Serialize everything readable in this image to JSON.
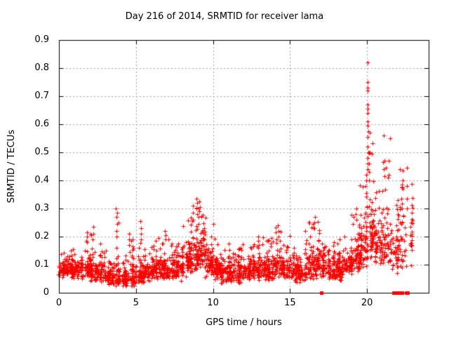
{
  "page": {
    "background": "#ffffff",
    "text_color": "#000000"
  },
  "chart_data": {
    "type": "scatter",
    "title": "Day 216 of 2014, SRMTID for receiver lama",
    "xlabel": "GPS time / hours",
    "ylabel": "SRMTID / TECUs",
    "xlim": [
      0,
      24
    ],
    "ylim": [
      0,
      0.9
    ],
    "xtick_values": [
      0,
      5,
      10,
      15,
      20
    ],
    "xtick_labels": [
      "0",
      "5",
      "10",
      "15",
      "20"
    ],
    "ytick_values": [
      0,
      0.1,
      0.2,
      0.3,
      0.4,
      0.5,
      0.6,
      0.7,
      0.8,
      0.9
    ],
    "ytick_labels": [
      "0",
      "0.1",
      "0.2",
      "0.3",
      "0.4",
      "0.5",
      "0.6",
      "0.7",
      "0.8",
      "0.9"
    ],
    "grid": {
      "style": "dashed",
      "color": "#a0a0a0"
    },
    "axis_color": "#000000",
    "marker_color": "#ff0000",
    "legend": "none",
    "seed": 216,
    "series": [
      {
        "name": "srmtid",
        "marker": "plus",
        "color": "#ff0000",
        "bands_format": [
          "t_start_h",
          "t_end_h",
          "n_points",
          "band_center_TECU",
          "spread_TECU",
          "max_TECU"
        ],
        "bands": [
          [
            0,
            0.5,
            60,
            0.1,
            0.022,
            0.16
          ],
          [
            0.5,
            1,
            60,
            0.095,
            0.022,
            0.17
          ],
          [
            1,
            1.5,
            55,
            0.1,
            0.026,
            0.19
          ],
          [
            1.5,
            2,
            55,
            0.1,
            0.028,
            0.21
          ],
          [
            2,
            2.5,
            55,
            0.09,
            0.028,
            0.24
          ],
          [
            2.5,
            3,
            50,
            0.08,
            0.024,
            0.18
          ],
          [
            3,
            3.5,
            50,
            0.065,
            0.02,
            0.14
          ],
          [
            3.5,
            4,
            52,
            0.07,
            0.024,
            0.26
          ],
          [
            4,
            4.5,
            50,
            0.06,
            0.02,
            0.16
          ],
          [
            4.5,
            5,
            50,
            0.07,
            0.024,
            0.22
          ],
          [
            5,
            5.5,
            55,
            0.08,
            0.028,
            0.24
          ],
          [
            5.5,
            6,
            55,
            0.09,
            0.025,
            0.18
          ],
          [
            6,
            6.5,
            55,
            0.1,
            0.025,
            0.19
          ],
          [
            6.5,
            7,
            55,
            0.1,
            0.028,
            0.22
          ],
          [
            7,
            7.5,
            55,
            0.09,
            0.025,
            0.19
          ],
          [
            7.5,
            8,
            55,
            0.1,
            0.03,
            0.23
          ],
          [
            8,
            8.5,
            60,
            0.13,
            0.04,
            0.28
          ],
          [
            8.5,
            9,
            60,
            0.16,
            0.05,
            0.33
          ],
          [
            9,
            9.5,
            60,
            0.17,
            0.05,
            0.32
          ],
          [
            9.5,
            10,
            55,
            0.13,
            0.04,
            0.27
          ],
          [
            10,
            10.5,
            55,
            0.1,
            0.03,
            0.2
          ],
          [
            10.5,
            11,
            55,
            0.085,
            0.024,
            0.16
          ],
          [
            11,
            11.5,
            55,
            0.08,
            0.024,
            0.18
          ],
          [
            11.5,
            12,
            55,
            0.09,
            0.028,
            0.2
          ],
          [
            12,
            12.5,
            55,
            0.09,
            0.025,
            0.17
          ],
          [
            12.5,
            13,
            55,
            0.1,
            0.028,
            0.2
          ],
          [
            13,
            13.5,
            55,
            0.1,
            0.028,
            0.21
          ],
          [
            13.5,
            14,
            55,
            0.1,
            0.032,
            0.22
          ],
          [
            14,
            14.5,
            55,
            0.11,
            0.034,
            0.24
          ],
          [
            14.5,
            15,
            55,
            0.1,
            0.03,
            0.22
          ],
          [
            15,
            15.5,
            50,
            0.09,
            0.028,
            0.18
          ],
          [
            15.5,
            16,
            50,
            0.08,
            0.024,
            0.16
          ],
          [
            16,
            16.5,
            55,
            0.11,
            0.038,
            0.25
          ],
          [
            16.5,
            17,
            55,
            0.12,
            0.04,
            0.27
          ],
          [
            17,
            17.5,
            50,
            0.1,
            0.03,
            0.22
          ],
          [
            17.5,
            18,
            50,
            0.09,
            0.028,
            0.18
          ],
          [
            18,
            18.5,
            55,
            0.1,
            0.03,
            0.2
          ],
          [
            18.5,
            19,
            55,
            0.12,
            0.038,
            0.25
          ],
          [
            19,
            19.5,
            55,
            0.15,
            0.05,
            0.3
          ],
          [
            19.5,
            20,
            60,
            0.2,
            0.065,
            0.42
          ],
          [
            20,
            20.5,
            60,
            0.24,
            0.08,
            0.55
          ],
          [
            20.5,
            21,
            55,
            0.22,
            0.07,
            0.47
          ],
          [
            21,
            21.5,
            48,
            0.2,
            0.065,
            0.5
          ],
          [
            21.5,
            22,
            42,
            0.17,
            0.055,
            0.38
          ],
          [
            22,
            22.5,
            38,
            0.2,
            0.07,
            0.45
          ],
          [
            22.5,
            23,
            22,
            0.24,
            0.08,
            0.42
          ]
        ],
        "spikes": [
          {
            "x": 1.85,
            "ys": [
              0.18,
              0.2,
              0.215
            ]
          },
          {
            "x": 2.2,
            "ys": [
              0.19,
              0.21,
              0.235
            ]
          },
          {
            "x": 3.72,
            "ys": [
              0.2,
              0.22,
              0.245,
              0.27,
              0.285,
              0.3
            ]
          },
          {
            "x": 4.55,
            "ys": [
              0.17,
              0.19,
              0.21
            ]
          },
          {
            "x": 5.3,
            "ys": [
              0.19,
              0.21,
              0.23,
              0.255
            ]
          },
          {
            "x": 6.9,
            "ys": [
              0.19,
              0.205,
              0.22
            ]
          },
          {
            "x": 8.7,
            "ys": [
              0.26,
              0.285,
              0.31
            ]
          },
          {
            "x": 8.95,
            "ys": [
              0.28,
              0.3,
              0.32,
              0.335
            ]
          },
          {
            "x": 9.1,
            "ys": [
              0.27,
              0.3,
              0.325
            ]
          },
          {
            "x": 12.95,
            "ys": [
              0.17,
              0.185,
              0.2
            ]
          },
          {
            "x": 14.2,
            "ys": [
              0.2,
              0.22,
              0.24
            ]
          },
          {
            "x": 16.6,
            "ys": [
              0.23,
              0.25,
              0.27
            ]
          },
          {
            "x": 19.3,
            "ys": [
              0.26,
              0.28,
              0.3
            ]
          },
          {
            "x": 19.95,
            "ys": [
              0.42,
              0.4,
              0.38,
              0.355
            ]
          },
          {
            "x": 20.05,
            "ys": [
              0.82,
              0.75,
              0.73,
              0.72,
              0.67,
              0.655,
              0.64,
              0.61,
              0.595,
              0.575,
              0.555,
              0.52,
              0.5,
              0.48,
              0.46,
              0.44
            ]
          },
          {
            "x": 20.15,
            "ys": [
              0.57,
              0.5,
              0.46,
              0.43,
              0.4
            ]
          },
          {
            "x": 21.1,
            "ys": [
              0.56,
              0.47,
              0.44,
              0.415
            ]
          },
          {
            "x": 21.45,
            "ys": [
              0.55,
              0.47,
              0.42
            ]
          },
          {
            "x": 22.3,
            "ys": [
              0.435,
              0.4,
              0.385,
              0.37,
              0.3,
              0.25
            ]
          },
          {
            "x": 22.6,
            "ys": [
              0.445,
              0.38,
              0.335,
              0.3
            ]
          }
        ]
      },
      {
        "name": "flagged-zero",
        "marker": "filled-square",
        "color": "#ff0000",
        "points": [
          [
            17.05,
            0
          ],
          [
            21.72,
            0
          ],
          [
            21.78,
            0
          ],
          [
            21.95,
            0
          ],
          [
            22.0,
            0
          ],
          [
            22.2,
            0
          ],
          [
            22.28,
            0
          ],
          [
            22.55,
            0
          ],
          [
            22.62,
            0
          ]
        ]
      }
    ]
  }
}
